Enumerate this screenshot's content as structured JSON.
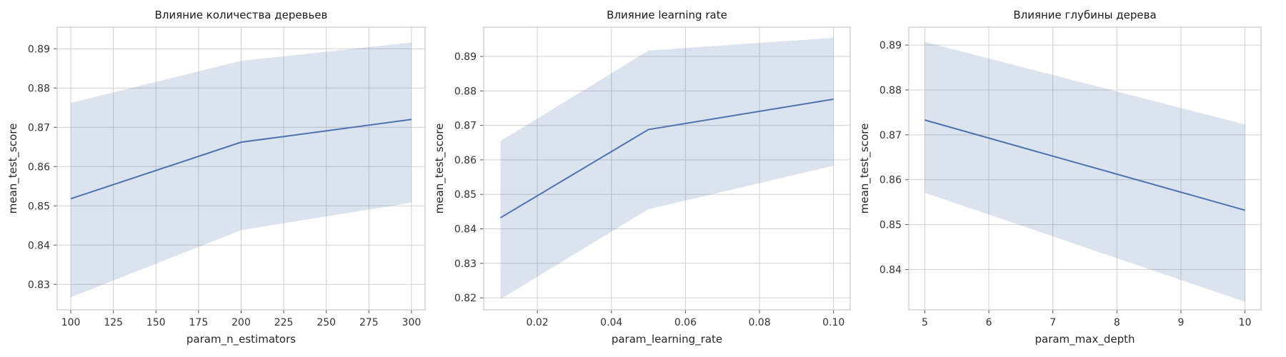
{
  "chart_data": [
    {
      "type": "line",
      "title": "Влияние количества деревьев",
      "xlabel": "param_n_estimators",
      "ylabel": "mean_test_score",
      "xlim": [
        92,
        308
      ],
      "ylim": [
        0.8235,
        0.8955
      ],
      "xticks": [
        100,
        125,
        150,
        175,
        200,
        225,
        250,
        275,
        300
      ],
      "xtick_labels": [
        "100",
        "125",
        "150",
        "175",
        "200",
        "225",
        "250",
        "275",
        "300"
      ],
      "yticks": [
        0.83,
        0.84,
        0.85,
        0.86,
        0.87,
        0.88,
        0.89
      ],
      "ytick_labels": [
        "0.83",
        "0.84",
        "0.85",
        "0.86",
        "0.87",
        "0.88",
        "0.89"
      ],
      "grid": true,
      "x": [
        100,
        200,
        300
      ],
      "y": [
        0.8518,
        0.8662,
        0.872
      ],
      "ci_lower": [
        0.8267,
        0.8438,
        0.8508
      ],
      "ci_upper": [
        0.8762,
        0.8869,
        0.8916
      ]
    },
    {
      "type": "line",
      "title": "Влияние learning rate",
      "xlabel": "param_learning_rate",
      "ylabel": "mean_test_score",
      "xlim": [
        0.0055,
        0.1045
      ],
      "ylim": [
        0.8165,
        0.8985
      ],
      "xticks": [
        0.02,
        0.04,
        0.06,
        0.08,
        0.1
      ],
      "xtick_labels": [
        "0.02",
        "0.04",
        "0.06",
        "0.08",
        "0.10"
      ],
      "yticks": [
        0.82,
        0.83,
        0.84,
        0.85,
        0.86,
        0.87,
        0.88,
        0.89
      ],
      "ytick_labels": [
        "0.82",
        "0.83",
        "0.84",
        "0.85",
        "0.86",
        "0.87",
        "0.88",
        "0.89"
      ],
      "grid": true,
      "x": [
        0.01,
        0.05,
        0.1
      ],
      "y": [
        0.8432,
        0.8688,
        0.8776
      ],
      "ci_lower": [
        0.8196,
        0.8457,
        0.8583
      ],
      "ci_upper": [
        0.8654,
        0.8917,
        0.8954
      ]
    },
    {
      "type": "line",
      "title": "Влияние глубины дерева",
      "xlabel": "param_max_depth",
      "ylabel": "mean_test_score",
      "xlim": [
        4.75,
        10.25
      ],
      "ylim": [
        0.831,
        0.894
      ],
      "xticks": [
        5,
        6,
        7,
        8,
        9,
        10
      ],
      "xtick_labels": [
        "5",
        "6",
        "7",
        "8",
        "9",
        "10"
      ],
      "yticks": [
        0.84,
        0.85,
        0.86,
        0.87,
        0.88,
        0.89
      ],
      "ytick_labels": [
        "0.84",
        "0.85",
        "0.86",
        "0.87",
        "0.88",
        "0.89"
      ],
      "grid": true,
      "x": [
        5,
        10
      ],
      "y": [
        0.8733,
        0.8532
      ],
      "ci_lower": [
        0.8571,
        0.8328
      ],
      "ci_upper": [
        0.8907,
        0.8723
      ]
    }
  ],
  "colors": {
    "line": "#4c72b0",
    "band": "#4c72b0",
    "grid": "#d0d0d0",
    "frame": "#c8c8c8"
  }
}
